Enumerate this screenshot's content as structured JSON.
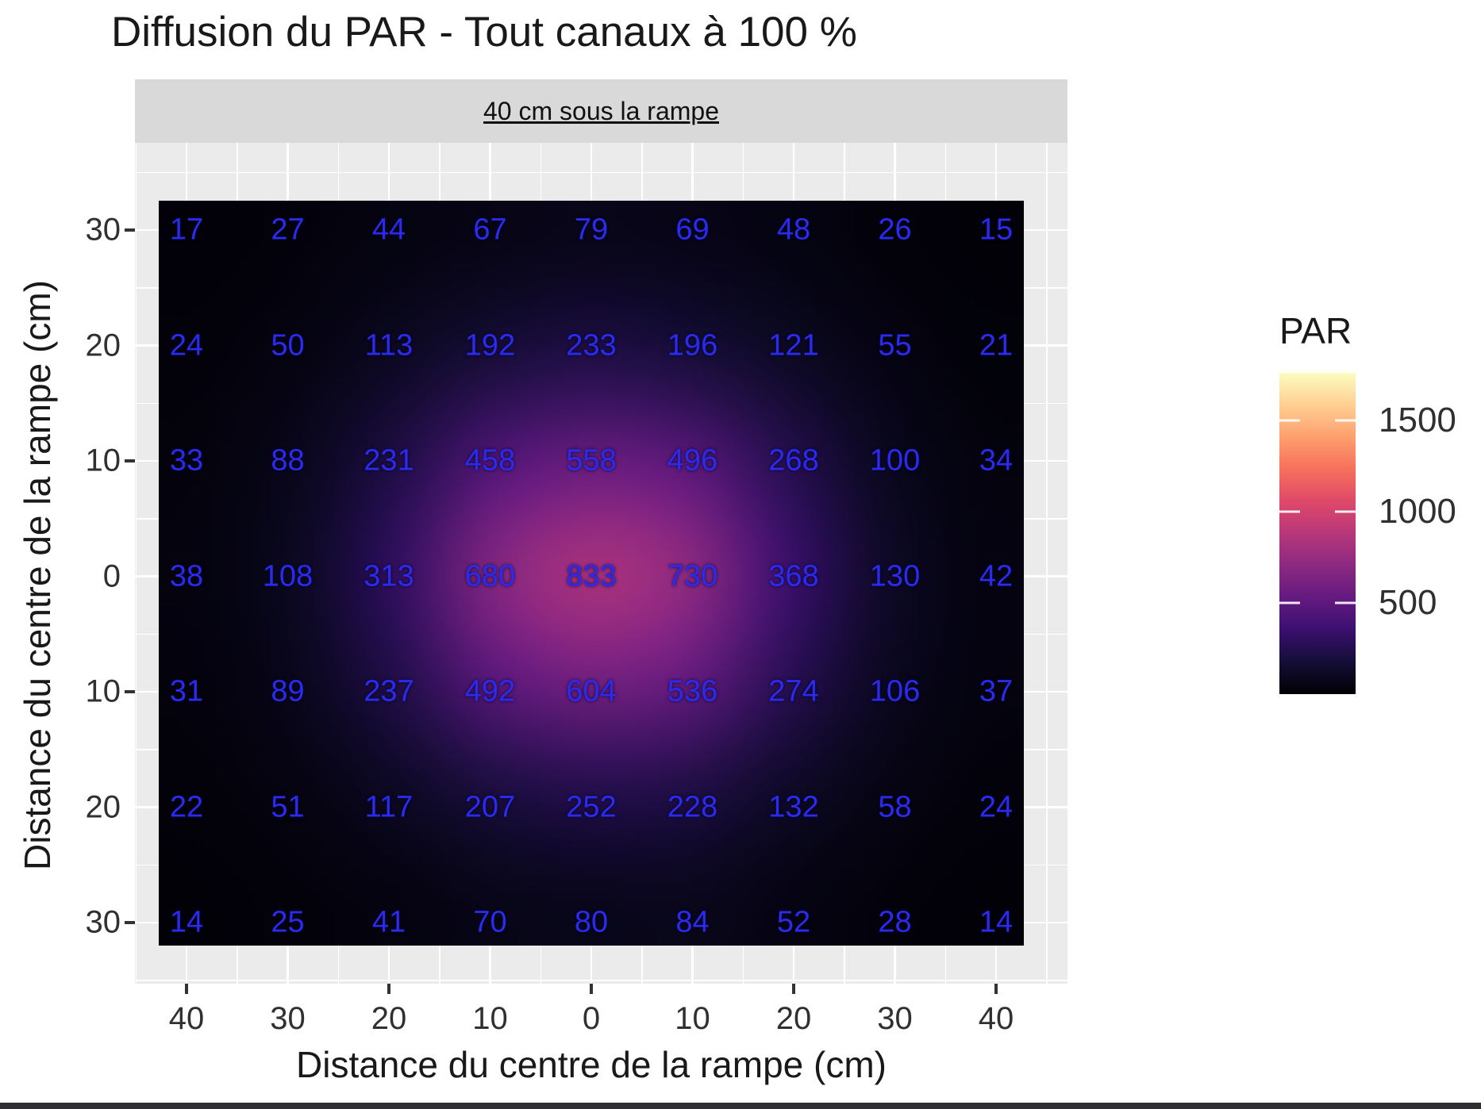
{
  "page": {
    "title": "Diffusion du PAR - Tout canaux à 100 %"
  },
  "chart_data": {
    "type": "heatmap",
    "title": "Diffusion du PAR - Tout canaux à 100 %",
    "facet_label": "40 cm sous la rampe",
    "xlabel": "Distance du centre de la rampe (cm)",
    "ylabel": "Distance du centre de la rampe (cm)",
    "x_ticklabels": [
      "40",
      "30",
      "20",
      "10",
      "0",
      "10",
      "20",
      "30",
      "40"
    ],
    "y_ticklabels": [
      "30",
      "20",
      "10",
      "0",
      "10",
      "20",
      "30"
    ],
    "values": [
      [
        17,
        27,
        44,
        67,
        79,
        69,
        48,
        26,
        15
      ],
      [
        24,
        50,
        113,
        192,
        233,
        196,
        121,
        55,
        21
      ],
      [
        33,
        88,
        231,
        458,
        558,
        496,
        268,
        100,
        34
      ],
      [
        38,
        108,
        313,
        680,
        833,
        730,
        368,
        130,
        42
      ],
      [
        31,
        89,
        237,
        492,
        604,
        536,
        274,
        106,
        37
      ],
      [
        22,
        51,
        117,
        207,
        252,
        228,
        132,
        58,
        24
      ],
      [
        14,
        25,
        41,
        70,
        80,
        84,
        52,
        28,
        14
      ]
    ],
    "value_label_color": "#2b2bf0",
    "legend": {
      "title": "PAR",
      "tick_labels": [
        "1500",
        "1000",
        "500"
      ],
      "tick_values": [
        1500,
        1000,
        500
      ],
      "domain": [
        0,
        1760
      ]
    },
    "colormap": {
      "name": "magma",
      "stops": [
        [
          0.0,
          "#000004"
        ],
        [
          0.1,
          "#140e36"
        ],
        [
          0.2,
          "#3b0f70"
        ],
        [
          0.3,
          "#641a80"
        ],
        [
          0.4,
          "#8c2981"
        ],
        [
          0.5,
          "#b73779"
        ],
        [
          0.6,
          "#de4968"
        ],
        [
          0.7,
          "#f7705c"
        ],
        [
          0.8,
          "#fe9f6d"
        ],
        [
          0.9,
          "#fecf92"
        ],
        [
          1.0,
          "#fcfdbf"
        ]
      ]
    },
    "panel_bg": "#ebebeb",
    "strip_bg": "#d9d9d9",
    "grid_color": "#ffffff",
    "layout_hints": {
      "grid": true,
      "legend_position": "right",
      "facet": "top-strip"
    }
  }
}
